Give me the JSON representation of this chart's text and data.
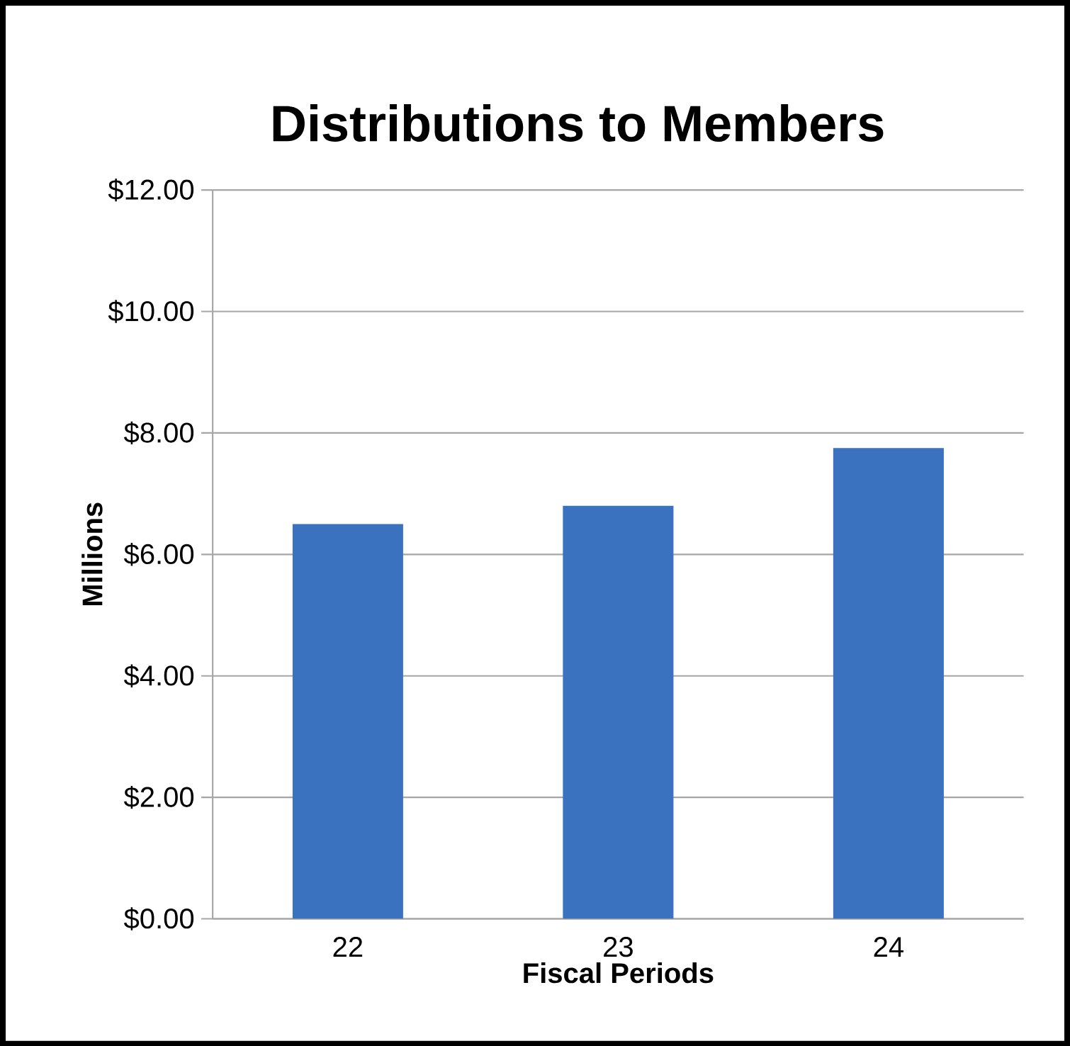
{
  "chart_data": {
    "type": "bar",
    "title": "Distributions to Members",
    "xlabel": "Fiscal Periods",
    "ylabel": "Millions",
    "categories": [
      "22",
      "23",
      "24"
    ],
    "values": [
      6.5,
      6.8,
      7.75
    ],
    "color": "#3a72c0",
    "ylim": [
      0,
      12
    ],
    "yticks": [
      {
        "value": 0,
        "label": "$0.00"
      },
      {
        "value": 2,
        "label": "$2.00"
      },
      {
        "value": 4,
        "label": "$4.00"
      },
      {
        "value": 6,
        "label": "$6.00"
      },
      {
        "value": 8,
        "label": "$8.00"
      },
      {
        "value": 10,
        "label": "$10.00"
      },
      {
        "value": 12,
        "label": "$12.00"
      }
    ],
    "grid": "y"
  }
}
